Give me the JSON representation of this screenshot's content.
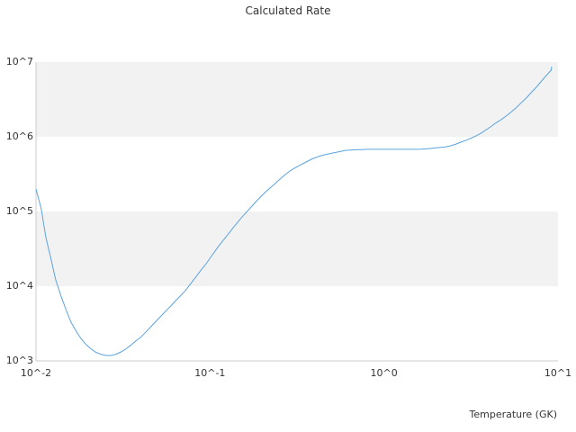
{
  "chart_data": {
    "type": "line",
    "title": "Calculated Rate",
    "xlabel": "Temperature (GK)",
    "ylabel": "",
    "x_scale": "log",
    "y_scale": "log",
    "xlim": [
      0.01,
      10
    ],
    "ylim": [
      1000,
      10000000
    ],
    "x_ticks": [
      {
        "value": 0.01,
        "label": "10^-2"
      },
      {
        "value": 0.1,
        "label": "10^-1"
      },
      {
        "value": 1,
        "label": "10^0"
      },
      {
        "value": 10,
        "label": "10^1"
      }
    ],
    "y_ticks": [
      {
        "value": 1000,
        "label": "10^3"
      },
      {
        "value": 10000,
        "label": "10^4"
      },
      {
        "value": 100000,
        "label": "10^5"
      },
      {
        "value": 1000000,
        "label": "10^6"
      },
      {
        "value": 10000000,
        "label": "10^7"
      }
    ],
    "grid": "alternating horizontal bands",
    "colors": {
      "line": "#5ba3e0",
      "band": "#f2f2f2",
      "axis": "#cccccc"
    },
    "series": [
      {
        "x": [
          0.01,
          0.0107,
          0.0114,
          0.0122,
          0.013,
          0.0139,
          0.0149,
          0.0159,
          0.017,
          0.0181,
          0.0194,
          0.0207,
          0.0221,
          0.0237,
          0.0253,
          0.027,
          0.0289,
          0.0308,
          0.0329,
          0.0352,
          0.0376,
          0.0402,
          0.0429,
          0.0459,
          0.049,
          0.0524,
          0.056,
          0.0598,
          0.0639,
          0.0683,
          0.0729,
          0.0779,
          0.0833,
          0.089,
          0.095,
          0.1016,
          0.1085,
          0.1159,
          0.1239,
          0.1323,
          0.1414,
          0.1511,
          0.1614,
          0.1724,
          0.1842,
          0.1969,
          0.2103,
          0.2247,
          0.2401,
          0.2565,
          0.274,
          0.2928,
          0.3128,
          0.3342,
          0.3571,
          0.3815,
          0.4076,
          0.4355,
          0.4653,
          0.4971,
          0.5311,
          0.5674,
          0.6062,
          0.6477,
          0.692,
          0.7393,
          0.7899,
          0.8439,
          0.9016,
          0.9633,
          1.029,
          1.099,
          1.175,
          1.255,
          1.341,
          1.433,
          1.531,
          1.635,
          1.747,
          1.867,
          1.994,
          2.131,
          2.277,
          2.432,
          2.599,
          2.777,
          2.967,
          3.17,
          3.386,
          3.618,
          3.866,
          4.13,
          4.413,
          4.715,
          5.037,
          5.382,
          5.75,
          6.143,
          6.564,
          7.012,
          7.492,
          8.005,
          8.552,
          9.137,
          9.2
        ],
        "y": [
          200000,
          110000,
          45000,
          23000,
          12000,
          7500,
          4800,
          3300,
          2500,
          2000,
          1650,
          1450,
          1300,
          1220,
          1180,
          1180,
          1230,
          1320,
          1450,
          1640,
          1860,
          2100,
          2450,
          2900,
          3400,
          4000,
          4700,
          5500,
          6500,
          7600,
          9000,
          11000,
          13500,
          16500,
          20000,
          25000,
          31000,
          38000,
          46000,
          56000,
          68000,
          82000,
          97000,
          115000,
          136000,
          160000,
          186000,
          212000,
          244000,
          280000,
          320000,
          357000,
          392000,
          425000,
          460000,
          500000,
          530000,
          560000,
          580000,
          600000,
          620000,
          640000,
          660000,
          665000,
          670000,
          675000,
          680000,
          680000,
          680000,
          680000,
          680000,
          680000,
          680000,
          680000,
          680000,
          680000,
          680000,
          682000,
          690000,
          700000,
          710000,
          720000,
          735000,
          760000,
          800000,
          850000,
          900000,
          960000,
          1030000,
          1120000,
          1240000,
          1380000,
          1540000,
          1700000,
          1900000,
          2150000,
          2450000,
          2850000,
          3300000,
          3900000,
          4600000,
          5500000,
          6600000,
          7800000,
          8700000
        ]
      }
    ]
  }
}
